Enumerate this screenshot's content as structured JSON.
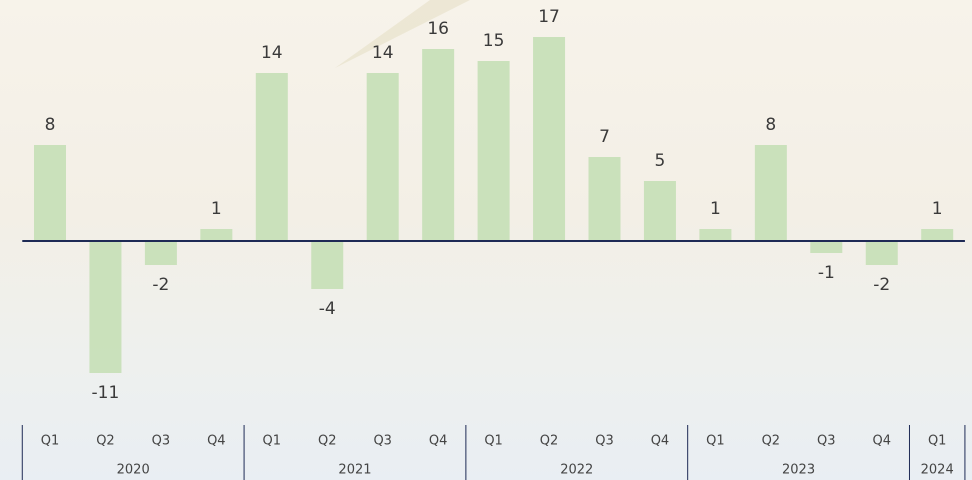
{
  "chart_data": {
    "type": "bar",
    "categories": [
      "Q1",
      "Q2",
      "Q3",
      "Q4",
      "Q1",
      "Q2",
      "Q3",
      "Q4",
      "Q1",
      "Q2",
      "Q3",
      "Q4",
      "Q1",
      "Q2",
      "Q3",
      "Q4",
      "Q1"
    ],
    "x_groups": [
      "2020",
      "2021",
      "2022",
      "2023",
      "2024"
    ],
    "values": [
      8,
      -11,
      -2,
      1,
      14,
      -4,
      14,
      16,
      15,
      17,
      7,
      5,
      1,
      8,
      -1,
      -2,
      1
    ],
    "color": "#c7dfb8"
  }
}
